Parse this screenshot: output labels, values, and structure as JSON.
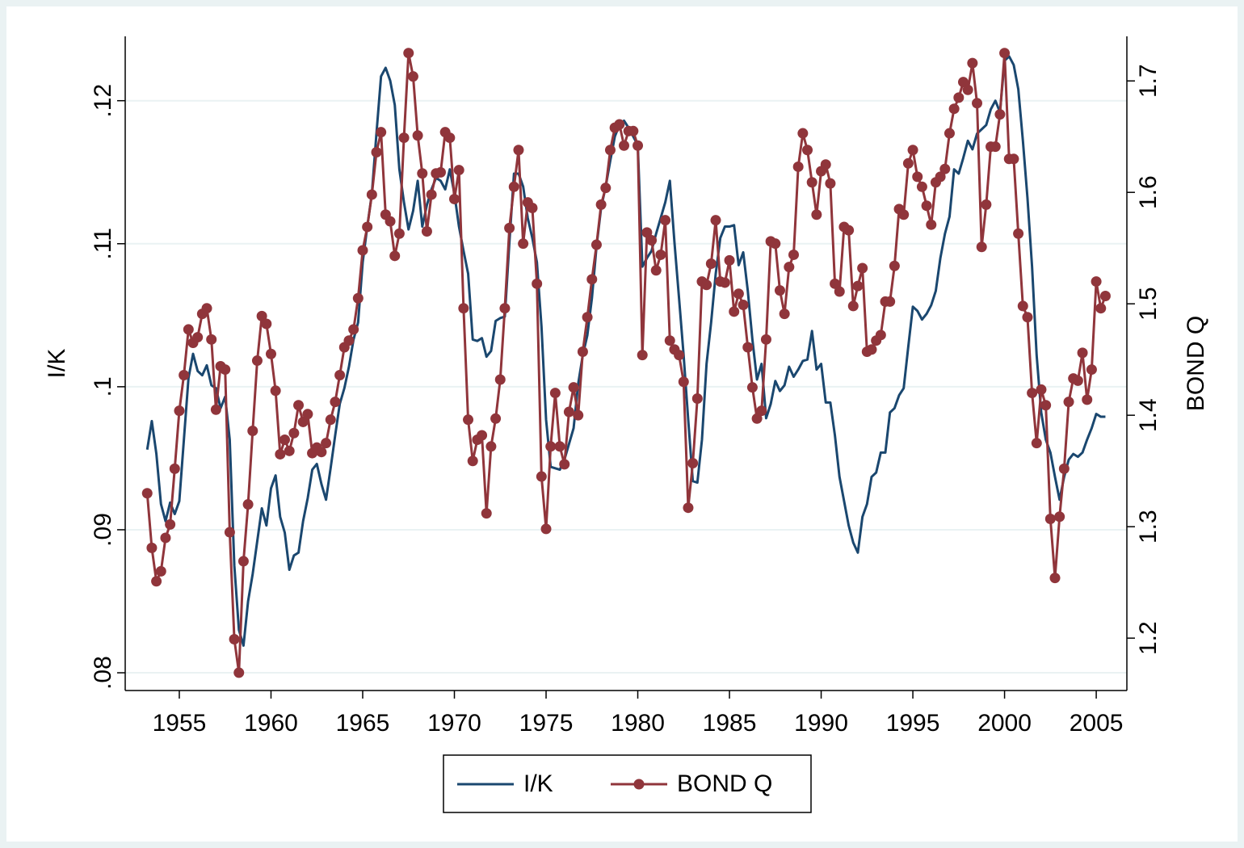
{
  "chart_data": {
    "type": "line",
    "x": [
      1953.25,
      1953.5,
      1953.75,
      1954,
      1954.25,
      1954.5,
      1954.75,
      1955,
      1955.25,
      1955.5,
      1955.75,
      1956,
      1956.25,
      1956.5,
      1956.75,
      1957,
      1957.25,
      1957.5,
      1957.75,
      1958,
      1958.25,
      1958.5,
      1958.75,
      1959,
      1959.25,
      1959.5,
      1959.75,
      1960,
      1960.25,
      1960.5,
      1960.75,
      1961,
      1961.25,
      1961.5,
      1961.75,
      1962,
      1962.25,
      1962.5,
      1962.75,
      1963,
      1963.25,
      1963.5,
      1963.75,
      1964,
      1964.25,
      1964.5,
      1964.75,
      1965,
      1965.25,
      1965.5,
      1965.75,
      1966,
      1966.25,
      1966.5,
      1966.75,
      1967,
      1967.25,
      1967.5,
      1967.75,
      1968,
      1968.25,
      1968.5,
      1968.75,
      1969,
      1969.25,
      1969.5,
      1969.75,
      1970,
      1970.25,
      1970.5,
      1970.75,
      1971,
      1971.25,
      1971.5,
      1971.75,
      1972,
      1972.25,
      1972.5,
      1972.75,
      1973,
      1973.25,
      1973.5,
      1973.75,
      1974,
      1974.25,
      1974.5,
      1974.75,
      1975,
      1975.25,
      1975.5,
      1975.75,
      1976,
      1976.25,
      1976.5,
      1976.75,
      1977,
      1977.25,
      1977.5,
      1977.75,
      1978,
      1978.25,
      1978.5,
      1978.75,
      1979,
      1979.25,
      1979.5,
      1979.75,
      1980,
      1980.25,
      1980.5,
      1980.75,
      1981,
      1981.25,
      1981.5,
      1981.75,
      1982,
      1982.25,
      1982.5,
      1982.75,
      1983,
      1983.25,
      1983.5,
      1983.75,
      1984,
      1984.25,
      1984.5,
      1984.75,
      1985,
      1985.25,
      1985.5,
      1985.75,
      1986,
      1986.25,
      1986.5,
      1986.75,
      1987,
      1987.25,
      1987.5,
      1987.75,
      1988,
      1988.25,
      1988.5,
      1988.75,
      1989,
      1989.25,
      1989.5,
      1989.75,
      1990,
      1990.25,
      1990.5,
      1990.75,
      1991,
      1991.25,
      1991.5,
      1991.75,
      1992,
      1992.25,
      1992.5,
      1992.75,
      1993,
      1993.25,
      1993.5,
      1993.75,
      1994,
      1994.25,
      1994.5,
      1994.75,
      1995,
      1995.25,
      1995.5,
      1995.75,
      1996,
      1996.25,
      1996.5,
      1996.75,
      1997,
      1997.25,
      1997.5,
      1997.75,
      1998,
      1998.25,
      1998.5,
      1998.75,
      1999,
      1999.25,
      1999.5,
      1999.75,
      2000,
      2000.25,
      2000.5,
      2000.75,
      2001,
      2001.25,
      2001.5,
      2001.75,
      2002,
      2002.25,
      2002.5,
      2002.75,
      2003,
      2003.25,
      2003.5,
      2003.75,
      2004,
      2004.25,
      2004.5,
      2004.75,
      2005,
      2005.25,
      2005.5
    ],
    "series": [
      {
        "name": "I/K",
        "color": "#1a476f",
        "axis": "y",
        "marker": false,
        "values": [
          0.0956,
          0.0976,
          0.0953,
          0.0918,
          0.0906,
          0.0919,
          0.0911,
          0.092,
          0.0963,
          0.1006,
          0.1023,
          0.1011,
          0.1008,
          0.1015,
          0.1001,
          0.0999,
          0.0985,
          0.0993,
          0.0963,
          0.0875,
          0.083,
          0.0819,
          0.085,
          0.0869,
          0.0892,
          0.0915,
          0.0903,
          0.0929,
          0.0938,
          0.0909,
          0.0898,
          0.0872,
          0.0882,
          0.0884,
          0.0906,
          0.0922,
          0.0942,
          0.0946,
          0.0932,
          0.0921,
          0.0943,
          0.0966,
          0.0988,
          0.0999,
          0.1014,
          0.1033,
          0.1045,
          0.1087,
          0.1112,
          0.1135,
          0.1177,
          0.1217,
          0.1223,
          0.1214,
          0.1197,
          0.1152,
          0.1129,
          0.111,
          0.1123,
          0.1144,
          0.1112,
          0.1127,
          0.1138,
          0.1146,
          0.1144,
          0.1138,
          0.1152,
          0.1135,
          0.1112,
          0.1095,
          0.1079,
          0.1033,
          0.1032,
          0.1034,
          0.1021,
          0.1025,
          0.1046,
          0.1048,
          0.1049,
          0.1101,
          0.1149,
          0.1149,
          0.114,
          0.1118,
          0.1104,
          0.1087,
          0.1042,
          0.0977,
          0.0944,
          0.0943,
          0.0942,
          0.0949,
          0.096,
          0.0971,
          0.1002,
          0.1022,
          0.1036,
          0.1062,
          0.1098,
          0.1125,
          0.114,
          0.1158,
          0.1175,
          0.1183,
          0.1186,
          0.1181,
          0.1175,
          0.1169,
          0.1084,
          0.109,
          0.1095,
          0.1107,
          0.1118,
          0.1129,
          0.1144,
          0.1101,
          0.1062,
          0.1022,
          0.0977,
          0.0934,
          0.0933,
          0.0963,
          0.1016,
          0.1045,
          0.1079,
          0.1104,
          0.1112,
          0.1112,
          0.1113,
          0.1085,
          0.1094,
          0.1067,
          0.1033,
          0.1005,
          0.1016,
          0.0978,
          0.0988,
          0.1004,
          0.0997,
          0.1001,
          0.1014,
          0.1007,
          0.1012,
          0.1018,
          0.1019,
          0.1039,
          0.1012,
          0.1016,
          0.0989,
          0.0989,
          0.0966,
          0.0937,
          0.092,
          0.0903,
          0.0891,
          0.0884,
          0.0909,
          0.0918,
          0.0937,
          0.094,
          0.0954,
          0.0954,
          0.0982,
          0.0985,
          0.0994,
          0.0999,
          0.1028,
          0.1056,
          0.1053,
          0.1047,
          0.1051,
          0.1057,
          0.1067,
          0.109,
          0.1107,
          0.1119,
          0.1152,
          0.1149,
          0.116,
          0.1172,
          0.1166,
          0.1177,
          0.118,
          0.1183,
          0.1194,
          0.12,
          0.1192,
          0.1228,
          0.1231,
          0.1225,
          0.1208,
          0.1172,
          0.1132,
          0.1084,
          0.1022,
          0.0982,
          0.0963,
          0.0954,
          0.0937,
          0.0921,
          0.0937,
          0.0949,
          0.0953,
          0.0951,
          0.0954,
          0.0963,
          0.0971,
          0.0981,
          0.0979,
          0.0979
        ]
      },
      {
        "name": "BOND Q",
        "color": "#90353b",
        "axis": "y2",
        "marker": true,
        "values": [
          1.33,
          1.281,
          1.251,
          1.26,
          1.29,
          1.302,
          1.352,
          1.404,
          1.436,
          1.477,
          1.465,
          1.47,
          1.491,
          1.496,
          1.468,
          1.405,
          1.444,
          1.441,
          1.295,
          1.199,
          1.169,
          1.269,
          1.32,
          1.386,
          1.449,
          1.489,
          1.482,
          1.455,
          1.422,
          1.365,
          1.378,
          1.368,
          1.384,
          1.409,
          1.394,
          1.401,
          1.366,
          1.371,
          1.367,
          1.375,
          1.396,
          1.412,
          1.436,
          1.461,
          1.467,
          1.477,
          1.505,
          1.548,
          1.569,
          1.598,
          1.636,
          1.654,
          1.58,
          1.574,
          1.543,
          1.563,
          1.649,
          1.725,
          1.704,
          1.651,
          1.617,
          1.565,
          1.598,
          1.617,
          1.618,
          1.654,
          1.649,
          1.594,
          1.62,
          1.496,
          1.396,
          1.359,
          1.378,
          1.382,
          1.312,
          1.372,
          1.397,
          1.432,
          1.496,
          1.568,
          1.605,
          1.638,
          1.554,
          1.591,
          1.586,
          1.518,
          1.345,
          1.298,
          1.372,
          1.42,
          1.372,
          1.356,
          1.403,
          1.425,
          1.4,
          1.457,
          1.488,
          1.522,
          1.553,
          1.589,
          1.604,
          1.638,
          1.658,
          1.661,
          1.642,
          1.655,
          1.655,
          1.642,
          1.454,
          1.564,
          1.557,
          1.53,
          1.544,
          1.575,
          1.467,
          1.459,
          1.454,
          1.43,
          1.317,
          1.357,
          1.415,
          1.52,
          1.517,
          1.536,
          1.575,
          1.52,
          1.519,
          1.539,
          1.493,
          1.509,
          1.499,
          1.461,
          1.425,
          1.397,
          1.404,
          1.468,
          1.556,
          1.554,
          1.512,
          1.491,
          1.533,
          1.544,
          1.623,
          1.653,
          1.638,
          1.609,
          1.58,
          1.619,
          1.625,
          1.608,
          1.518,
          1.511,
          1.569,
          1.566,
          1.498,
          1.516,
          1.532,
          1.457,
          1.459,
          1.467,
          1.472,
          1.502,
          1.502,
          1.534,
          1.585,
          1.58,
          1.626,
          1.638,
          1.614,
          1.605,
          1.588,
          1.571,
          1.609,
          1.614,
          1.621,
          1.653,
          1.675,
          1.685,
          1.699,
          1.692,
          1.716,
          1.68,
          1.551,
          1.589,
          1.641,
          1.641,
          1.67,
          1.725,
          1.63,
          1.63,
          1.563,
          1.498,
          1.488,
          1.42,
          1.375,
          1.423,
          1.409,
          1.307,
          1.254,
          1.309,
          1.352,
          1.412,
          1.433,
          1.431,
          1.456,
          1.414,
          1.441,
          1.52,
          1.496,
          1.507
        ]
      }
    ],
    "xlim": [
      1952.05,
      2006.67
    ],
    "xticks": [
      1955,
      1960,
      1965,
      1970,
      1975,
      1980,
      1985,
      1990,
      1995,
      2000,
      2005
    ],
    "ylim": [
      0.07876,
      0.1245
    ],
    "yticks": [
      {
        "value": 0.08,
        "label": ".08"
      },
      {
        "value": 0.09,
        "label": ".09"
      },
      {
        "value": 0.1,
        "label": ".1"
      },
      {
        "value": 0.11,
        "label": ".11"
      },
      {
        "value": 0.12,
        "label": ".12"
      }
    ],
    "y2lim": [
      1.153,
      1.74
    ],
    "y2ticks": [
      1.2,
      1.3,
      1.4,
      1.5,
      1.6,
      1.7
    ],
    "ylabel": "I/K",
    "y2label": "BOND Q",
    "grid": true,
    "legend": "bottom"
  }
}
